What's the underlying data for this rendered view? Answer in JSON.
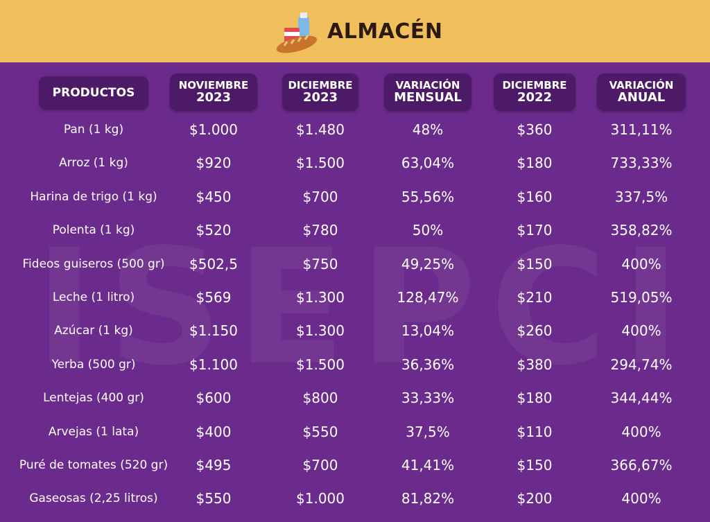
{
  "header": {
    "title": "ALMACÉN"
  },
  "watermark": "ISEPCI",
  "table": {
    "headers": [
      [
        "PRODUCTOS"
      ],
      [
        "NOVIEMBRE",
        "2023"
      ],
      [
        "DICIEMBRE",
        "2023"
      ],
      [
        "VARIACIÓN",
        "MENSUAL"
      ],
      [
        "DICIEMBRE",
        "2022"
      ],
      [
        "VARIACIÓN",
        "ANUAL"
      ]
    ],
    "rows": [
      [
        "Pan (1 kg)",
        "$1.000",
        "$1.480",
        "48%",
        "$360",
        "311,11%"
      ],
      [
        "Arroz (1 kg)",
        "$920",
        "$1.500",
        "63,04%",
        "$180",
        "733,33%"
      ],
      [
        "Harina de trigo (1 kg)",
        "$450",
        "$700",
        "55,56%",
        "$160",
        "337,5%"
      ],
      [
        "Polenta (1 kg)",
        "$520",
        "$780",
        "50%",
        "$170",
        "358,82%"
      ],
      [
        "Fideos guiseros (500 gr)",
        "$502,5",
        "$750",
        "49,25%",
        "$150",
        "400%"
      ],
      [
        "Leche (1 litro)",
        "$569",
        "$1.300",
        "128,47%",
        "$210",
        "519,05%"
      ],
      [
        "Azúcar (1 kg)",
        "$1.150",
        "$1.300",
        "13,04%",
        "$260",
        "400%"
      ],
      [
        "Yerba (500 gr)",
        "$1.100",
        "$1.500",
        "36,36%",
        "$380",
        "294,74%"
      ],
      [
        "Lentejas (400 gr)",
        "$600",
        "$800",
        "33,33%",
        "$180",
        "344,44%"
      ],
      [
        "Arvejas (1 lata)",
        "$400",
        "$550",
        "37,5%",
        "$110",
        "400%"
      ],
      [
        "Puré de tomates (520 gr)",
        "$495",
        "$700",
        "41,41%",
        "$150",
        "366,67%"
      ],
      [
        "Gaseosas (2,25 litros)",
        "$550",
        "$1.000",
        "81,82%",
        "$200",
        "400%"
      ]
    ]
  }
}
